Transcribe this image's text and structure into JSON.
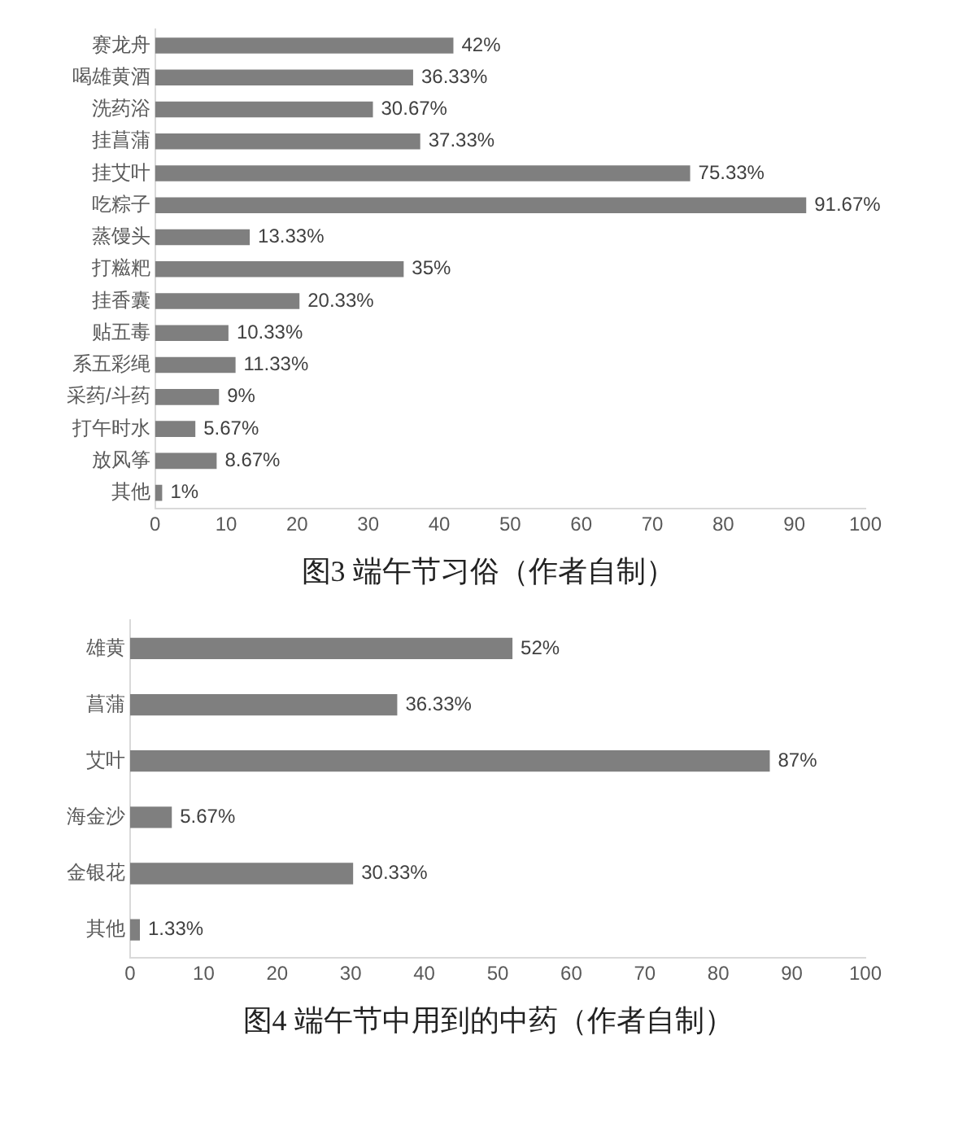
{
  "chart_data": [
    {
      "type": "bar",
      "orientation": "horizontal",
      "title": "图3 端午节习俗（作者自制）",
      "categories": [
        "赛龙舟",
        "喝雄黄酒",
        "洗药浴",
        "挂菖蒲",
        "挂艾叶",
        "吃粽子",
        "蒸馒头",
        "打糍粑",
        "挂香囊",
        "贴五毒",
        "系五彩绳",
        "采药/斗药",
        "打午时水",
        "放风筝",
        "其他"
      ],
      "values": [
        42,
        36.33,
        30.67,
        37.33,
        75.33,
        91.67,
        13.33,
        35,
        20.33,
        10.33,
        11.33,
        9,
        5.67,
        8.67,
        1
      ],
      "value_labels": [
        "42%",
        "36.33%",
        "30.67%",
        "37.33%",
        "75.33%",
        "91.67%",
        "13.33%",
        "35%",
        "20.33%",
        "10.33%",
        "11.33%",
        "9%",
        "5.67%",
        "8.67%",
        "1%"
      ],
      "color": "#7f7f7f",
      "xlim": [
        0,
        100
      ],
      "xticks": [
        0,
        10,
        20,
        30,
        40,
        50,
        60,
        70,
        80,
        90,
        100
      ]
    },
    {
      "type": "bar",
      "orientation": "horizontal",
      "title": "图4 端午节中用到的中药（作者自制）",
      "categories": [
        "雄黄",
        "菖蒲",
        "艾叶",
        "海金沙",
        "金银花",
        "其他"
      ],
      "values": [
        52,
        36.33,
        87,
        5.67,
        30.33,
        1.33
      ],
      "value_labels": [
        "52%",
        "36.33%",
        "87%",
        "5.67%",
        "30.33%",
        "1.33%"
      ],
      "color": "#7f7f7f",
      "xlim": [
        0,
        100
      ],
      "xticks": [
        0,
        10,
        20,
        30,
        40,
        50,
        60,
        70,
        80,
        90,
        100
      ]
    }
  ]
}
